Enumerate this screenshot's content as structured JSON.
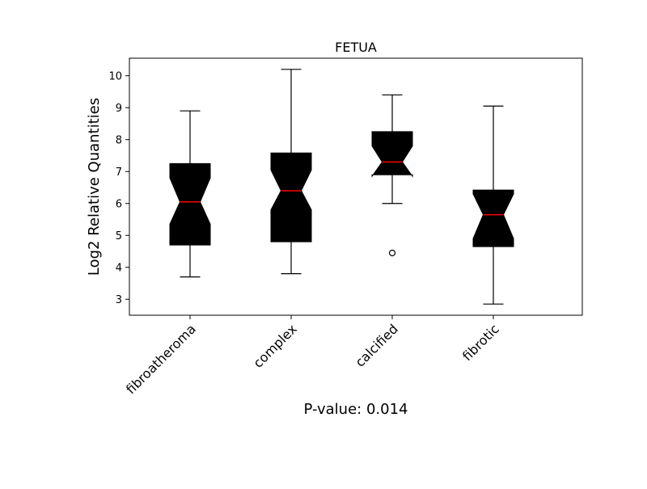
{
  "chart_data": {
    "type": "boxplot",
    "title": "FETUA",
    "ylabel": "Log2 Relative Quantities",
    "xlabel": "",
    "ylim": [
      2.5,
      10.55
    ],
    "yticks": [
      3,
      4,
      5,
      6,
      7,
      8,
      9,
      10
    ],
    "notched": true,
    "box_color": "#000000",
    "median_color": "#ff0000",
    "grid": false,
    "categories": [
      "fibroatheroma",
      "complex",
      "calcified",
      "fibrotic"
    ],
    "boxes": [
      {
        "category": "fibroatheroma",
        "whisker_low": 3.7,
        "q1": 4.7,
        "median": 6.05,
        "q3": 7.25,
        "whisker_high": 8.9,
        "notch_low": 5.35,
        "notch_high": 6.8,
        "outliers": []
      },
      {
        "category": "complex",
        "whisker_low": 3.8,
        "q1": 4.8,
        "median": 6.4,
        "q3": 7.58,
        "whisker_high": 10.2,
        "notch_low": 5.8,
        "notch_high": 7.05,
        "outliers": []
      },
      {
        "category": "calcified",
        "whisker_low": 6.0,
        "q1": 6.9,
        "median": 7.3,
        "q3": 8.25,
        "whisker_high": 9.4,
        "notch_low": 6.85,
        "notch_high": 7.8,
        "outliers": [
          4.45
        ]
      },
      {
        "category": "fibrotic",
        "whisker_low": 2.85,
        "q1": 4.65,
        "median": 5.65,
        "q3": 6.42,
        "whisker_high": 9.05,
        "notch_low": 4.9,
        "notch_high": 6.3,
        "outliers": []
      }
    ]
  },
  "footer": {
    "pvalue_text": "P-value: 0.014"
  }
}
